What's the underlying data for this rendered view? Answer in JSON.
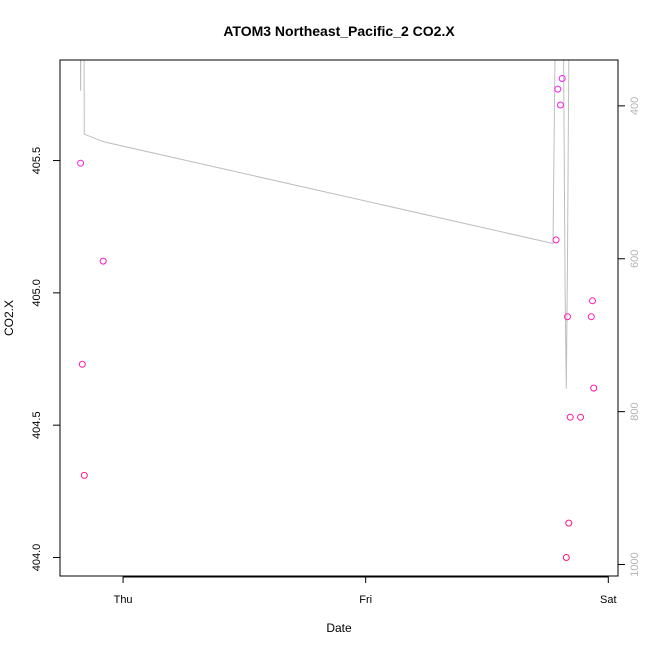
{
  "chart_data": {
    "type": "scatter",
    "title": "ATOM3 Northeast_Pacific_2 CO2.X",
    "xlabel": "Date",
    "ylabel": "CO2.X",
    "x_ticks": [
      {
        "label": "Thu",
        "day": 0
      },
      {
        "label": "Fri",
        "day": 1
      },
      {
        "label": "Sat",
        "day": 2
      }
    ],
    "x_range_days": [
      -0.26,
      2.04
    ],
    "ylim": [
      403.93,
      405.88
    ],
    "y_ticks": [
      404.0,
      404.5,
      405.0,
      405.5
    ],
    "y_tick_labels": [
      "404.0",
      "404.5",
      "405.0",
      "405.5"
    ],
    "y2_range": [
      1015,
      340
    ],
    "y2_ticks": [
      400,
      600,
      800,
      1000
    ],
    "y2_tick_labels": [
      "400",
      "600",
      "800",
      "1000"
    ],
    "grid": false,
    "series": [
      {
        "kind": "points",
        "points_day": [
          {
            "day": -0.175,
            "y": 405.49
          },
          {
            "day": -0.168,
            "y": 404.73
          },
          {
            "day": -0.16,
            "y": 404.31
          },
          {
            "day": -0.082,
            "y": 405.12
          },
          {
            "day": 1.785,
            "y": 405.2
          },
          {
            "day": 1.792,
            "y": 405.77
          },
          {
            "day": 1.803,
            "y": 405.71
          },
          {
            "day": 1.81,
            "y": 405.81
          },
          {
            "day": 1.827,
            "y": 404.0
          },
          {
            "day": 1.832,
            "y": 404.91
          },
          {
            "day": 1.837,
            "y": 404.13
          },
          {
            "day": 1.843,
            "y": 404.53
          },
          {
            "day": 1.886,
            "y": 404.53
          },
          {
            "day": 1.93,
            "y": 404.91
          },
          {
            "day": 1.935,
            "y": 404.97
          },
          {
            "day": 1.94,
            "y": 404.64
          }
        ]
      },
      {
        "kind": "line",
        "axis": "right",
        "color": "#bebebe",
        "points_day": [
          {
            "day": -0.178,
            "y2": 200
          },
          {
            "day": -0.175,
            "y2": 380
          },
          {
            "day": -0.172,
            "y2": 200
          },
          {
            "day": -0.168,
            "y2": 340
          },
          {
            "day": -0.162,
            "y2": 200
          },
          {
            "day": -0.16,
            "y2": 437
          },
          {
            "day": -0.08,
            "y2": 447
          },
          {
            "day": 1.772,
            "y2": 580
          },
          {
            "day": 1.785,
            "y2": 200
          },
          {
            "day": 1.8,
            "y2": 100
          },
          {
            "day": 1.808,
            "y2": 200
          },
          {
            "day": 1.815,
            "y2": 300
          },
          {
            "day": 1.822,
            "y2": 640
          },
          {
            "day": 1.827,
            "y2": 770
          },
          {
            "day": 1.832,
            "y2": 600
          },
          {
            "day": 1.838,
            "y2": 300
          },
          {
            "day": 1.843,
            "y2": 200
          }
        ]
      }
    ]
  }
}
